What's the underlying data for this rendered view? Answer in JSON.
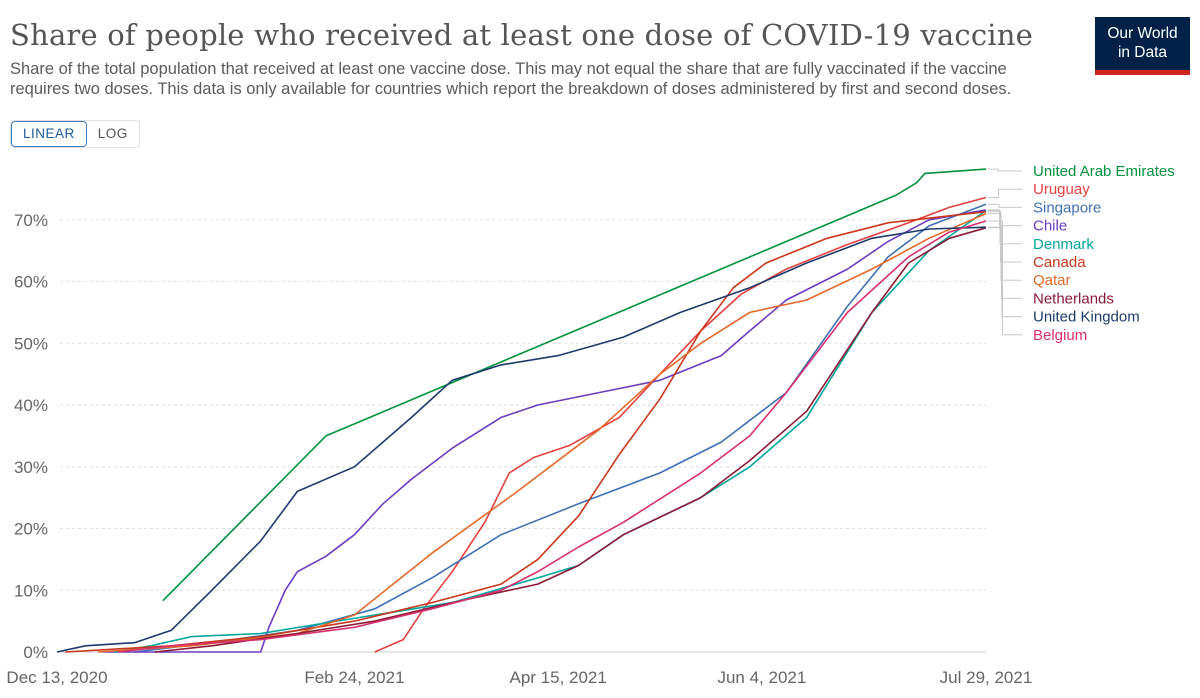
{
  "header": {
    "title": "Share of people who received at least one dose of COVID-19 vaccine",
    "subtitle": "Share of the total population that received at least one vaccine dose. This may not equal the share that are fully vaccinated if the vaccine requires two doses. This data is only available for countries which report the breakdown of doses administered by first and second doses.",
    "logo_line1": "Our World",
    "logo_line2": "in Data"
  },
  "controls": {
    "linear_label": "LINEAR",
    "log_label": "LOG",
    "selected": "LINEAR"
  },
  "chart_data": {
    "type": "line",
    "title": "Share of people who received at least one dose of COVID-19 vaccine",
    "xlabel": "",
    "ylabel": "",
    "x_ticks": [
      "Dec 13, 2020",
      "Feb 24, 2021",
      "Apr 15, 2021",
      "Jun 4, 2021",
      "Jul 29, 2021"
    ],
    "y_ticks": [
      "0%",
      "10%",
      "20%",
      "30%",
      "40%",
      "50%",
      "60%",
      "70%"
    ],
    "xlim": [
      "2020-12-13",
      "2021-07-29"
    ],
    "ylim": [
      0,
      80
    ],
    "grid": "horizontal dashed",
    "legend_position": "right",
    "series": [
      {
        "name": "United Arab Emirates",
        "color": "#00913c",
        "points": [
          [
            "2021-01-08",
            8.3
          ],
          [
            "2021-02-17",
            35.0
          ],
          [
            "2021-07-07",
            74.0
          ],
          [
            "2021-07-12",
            76.0
          ],
          [
            "2021-07-14",
            77.5
          ],
          [
            "2021-07-29",
            78.2
          ]
        ]
      },
      {
        "name": "Uruguay",
        "color": "#e2403f",
        "points": [
          [
            "2021-03-01",
            0
          ],
          [
            "2021-03-08",
            2.0
          ],
          [
            "2021-03-13",
            7.0
          ],
          [
            "2021-03-20",
            13.0
          ],
          [
            "2021-03-28",
            21.0
          ],
          [
            "2021-04-03",
            29.0
          ],
          [
            "2021-04-09",
            31.5
          ],
          [
            "2021-04-18",
            33.5
          ],
          [
            "2021-04-30",
            38.0
          ],
          [
            "2021-05-10",
            45.0
          ],
          [
            "2021-05-20",
            52.0
          ],
          [
            "2021-05-30",
            58.0
          ],
          [
            "2021-06-10",
            62.0
          ],
          [
            "2021-06-25",
            66.0
          ],
          [
            "2021-07-10",
            69.5
          ],
          [
            "2021-07-20",
            72.0
          ],
          [
            "2021-07-29",
            73.6
          ]
        ]
      },
      {
        "name": "Singapore",
        "color": "#3f70b4",
        "points": [
          [
            "2021-01-01",
            0
          ],
          [
            "2021-01-20",
            1.5
          ],
          [
            "2021-02-10",
            3.5
          ],
          [
            "2021-03-01",
            7.0
          ],
          [
            "2021-03-15",
            12.0
          ],
          [
            "2021-04-01",
            19.0
          ],
          [
            "2021-04-20",
            24.0
          ],
          [
            "2021-05-10",
            29.0
          ],
          [
            "2021-05-25",
            34.0
          ],
          [
            "2021-06-10",
            42.0
          ],
          [
            "2021-06-25",
            56.0
          ],
          [
            "2021-07-05",
            64.0
          ],
          [
            "2021-07-15",
            69.0
          ],
          [
            "2021-07-29",
            72.5
          ]
        ]
      },
      {
        "name": "Chile",
        "color": "#6c3cbf",
        "points": [
          [
            "2020-12-24",
            0
          ],
          [
            "2021-02-01",
            0
          ],
          [
            "2021-02-03",
            4.0
          ],
          [
            "2021-02-07",
            10.0
          ],
          [
            "2021-02-10",
            13.0
          ],
          [
            "2021-02-17",
            15.5
          ],
          [
            "2021-02-24",
            19.0
          ],
          [
            "2021-03-03",
            24.0
          ],
          [
            "2021-03-10",
            28.0
          ],
          [
            "2021-03-20",
            33.0
          ],
          [
            "2021-04-01",
            38.0
          ],
          [
            "2021-04-10",
            40.0
          ],
          [
            "2021-04-25",
            42.0
          ],
          [
            "2021-05-10",
            44.0
          ],
          [
            "2021-05-25",
            48.0
          ],
          [
            "2021-06-01",
            52.0
          ],
          [
            "2021-06-10",
            57.0
          ],
          [
            "2021-06-25",
            62.0
          ],
          [
            "2021-07-05",
            66.5
          ],
          [
            "2021-07-15",
            70.0
          ],
          [
            "2021-07-29",
            71.6
          ]
        ]
      },
      {
        "name": "Denmark",
        "color": "#00a59e",
        "points": [
          [
            "2020-12-27",
            0
          ],
          [
            "2021-01-05",
            1.0
          ],
          [
            "2021-01-15",
            2.5
          ],
          [
            "2021-02-01",
            3.0
          ],
          [
            "2021-03-01",
            6.0
          ],
          [
            "2021-03-20",
            8.0
          ],
          [
            "2021-04-10",
            12.0
          ],
          [
            "2021-04-20",
            14.0
          ],
          [
            "2021-05-01",
            19.0
          ],
          [
            "2021-05-20",
            25.0
          ],
          [
            "2021-06-01",
            30.0
          ],
          [
            "2021-06-15",
            38.0
          ],
          [
            "2021-07-01",
            55.0
          ],
          [
            "2021-07-15",
            65.0
          ],
          [
            "2021-07-29",
            71.5
          ]
        ]
      },
      {
        "name": "Canada",
        "color": "#c8371b",
        "points": [
          [
            "2020-12-15",
            0
          ],
          [
            "2021-01-10",
            1.0
          ],
          [
            "2021-02-01",
            2.5
          ],
          [
            "2021-02-24",
            5.0
          ],
          [
            "2021-03-15",
            8.0
          ],
          [
            "2021-04-01",
            11.0
          ],
          [
            "2021-04-10",
            15.0
          ],
          [
            "2021-04-20",
            22.0
          ],
          [
            "2021-04-30",
            32.0
          ],
          [
            "2021-05-10",
            41.0
          ],
          [
            "2021-05-20",
            52.0
          ],
          [
            "2021-05-28",
            59.0
          ],
          [
            "2021-06-05",
            63.0
          ],
          [
            "2021-06-20",
            67.0
          ],
          [
            "2021-07-05",
            69.5
          ],
          [
            "2021-07-29",
            71.3
          ]
        ]
      },
      {
        "name": "Qatar",
        "color": "#e3692a",
        "points": [
          [
            "2020-12-23",
            0
          ],
          [
            "2021-01-15",
            1.0
          ],
          [
            "2021-02-10",
            3.0
          ],
          [
            "2021-02-24",
            6.0
          ],
          [
            "2021-03-15",
            16.0
          ],
          [
            "2021-04-05",
            26.0
          ],
          [
            "2021-04-25",
            36.0
          ],
          [
            "2021-05-10",
            45.0
          ],
          [
            "2021-05-20",
            50.0
          ],
          [
            "2021-06-01",
            55.0
          ],
          [
            "2021-06-15",
            57.0
          ],
          [
            "2021-07-01",
            62.0
          ],
          [
            "2021-07-15",
            67.0
          ],
          [
            "2021-07-29",
            71.0
          ]
        ]
      },
      {
        "name": "Netherlands",
        "color": "#8b1a35",
        "points": [
          [
            "2021-01-06",
            0
          ],
          [
            "2021-01-20",
            1.0
          ],
          [
            "2021-02-10",
            3.0
          ],
          [
            "2021-03-01",
            5.0
          ],
          [
            "2021-03-20",
            8.0
          ],
          [
            "2021-04-10",
            11.0
          ],
          [
            "2021-04-20",
            14.0
          ],
          [
            "2021-05-01",
            19.0
          ],
          [
            "2021-05-20",
            25.0
          ],
          [
            "2021-06-01",
            31.0
          ],
          [
            "2021-06-15",
            39.0
          ],
          [
            "2021-07-01",
            55.0
          ],
          [
            "2021-07-10",
            63.0
          ],
          [
            "2021-07-20",
            67.0
          ],
          [
            "2021-07-29",
            68.7
          ]
        ]
      },
      {
        "name": "United Kingdom",
        "color": "#1d3a6b",
        "points": [
          [
            "2020-12-13",
            0
          ],
          [
            "2020-12-20",
            1.0
          ],
          [
            "2021-01-01",
            1.5
          ],
          [
            "2021-01-10",
            3.5
          ],
          [
            "2021-01-20",
            10.0
          ],
          [
            "2021-02-01",
            18.0
          ],
          [
            "2021-02-10",
            26.0
          ],
          [
            "2021-02-24",
            30.0
          ],
          [
            "2021-03-10",
            38.0
          ],
          [
            "2021-03-20",
            44.0
          ],
          [
            "2021-04-01",
            46.5
          ],
          [
            "2021-04-15",
            48.0
          ],
          [
            "2021-05-01",
            51.0
          ],
          [
            "2021-05-15",
            55.0
          ],
          [
            "2021-06-01",
            59.0
          ],
          [
            "2021-06-15",
            63.0
          ],
          [
            "2021-07-01",
            67.0
          ],
          [
            "2021-07-15",
            68.5
          ],
          [
            "2021-07-29",
            68.8
          ]
        ]
      },
      {
        "name": "Belgium",
        "color": "#d6306e",
        "points": [
          [
            "2020-12-28",
            0
          ],
          [
            "2021-01-10",
            1.0
          ],
          [
            "2021-02-01",
            2.0
          ],
          [
            "2021-02-24",
            4.0
          ],
          [
            "2021-03-15",
            7.0
          ],
          [
            "2021-04-01",
            10.0
          ],
          [
            "2021-04-10",
            13.0
          ],
          [
            "2021-04-20",
            17.0
          ],
          [
            "2021-05-01",
            21.0
          ],
          [
            "2021-05-20",
            29.0
          ],
          [
            "2021-06-01",
            35.0
          ],
          [
            "2021-06-10",
            42.0
          ],
          [
            "2021-06-25",
            55.0
          ],
          [
            "2021-07-10",
            64.0
          ],
          [
            "2021-07-20",
            68.0
          ],
          [
            "2021-07-29",
            69.8
          ]
        ]
      }
    ]
  }
}
